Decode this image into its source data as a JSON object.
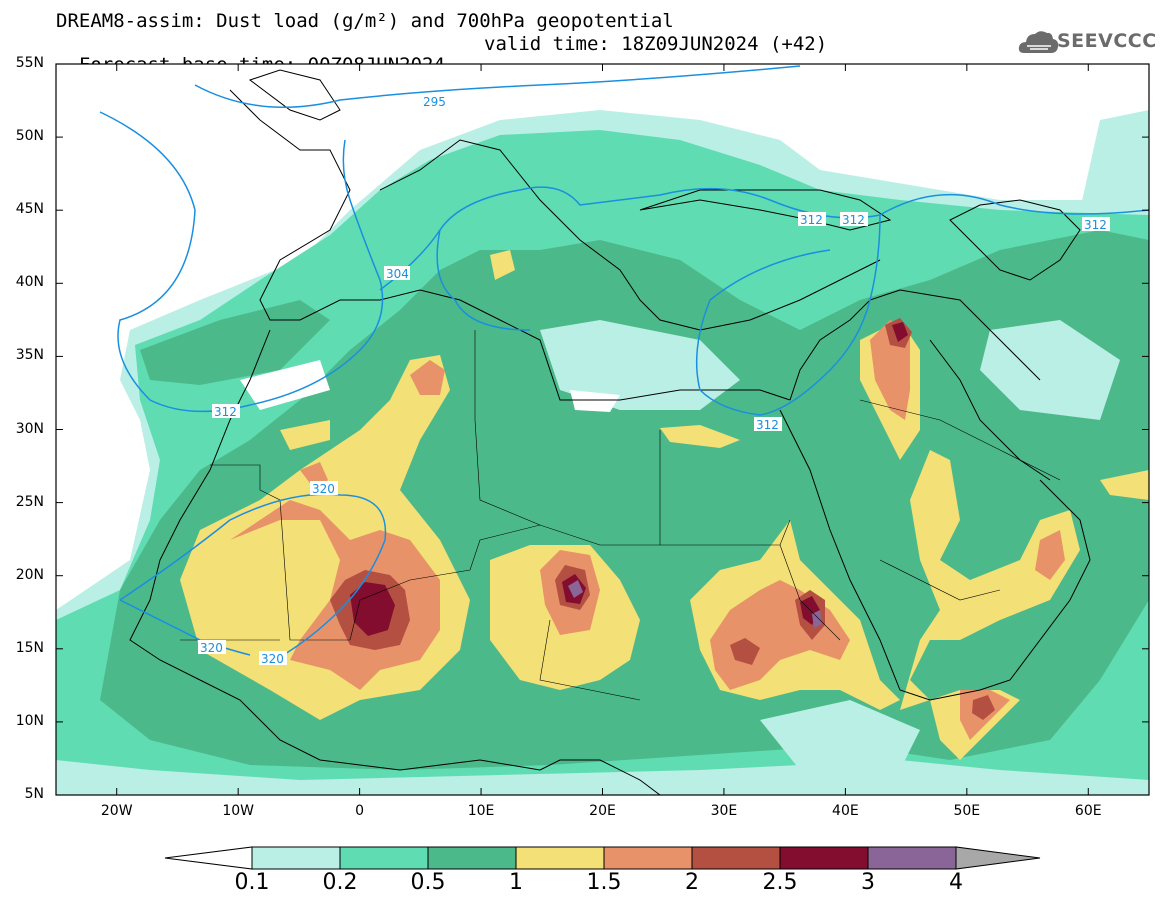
{
  "header": {
    "line1": "DREAM8-assim: Dust load (g/m²) and 700hPa geopotential",
    "line2_left": "Forecast base time: 00Z08JUN2024",
    "line2_right": "valid time: 18Z09JUN2024 (+42)"
  },
  "logo": {
    "text": "SEEVCCC",
    "icon": "cloud-icon",
    "color": "#6b6b6b"
  },
  "axes": {
    "lat_ticks": [
      "55N",
      "50N",
      "45N",
      "40N",
      "35N",
      "30N",
      "25N",
      "20N",
      "15N",
      "10N",
      "5N"
    ],
    "lat_values": [
      55,
      50,
      45,
      40,
      35,
      30,
      25,
      20,
      15,
      10,
      5
    ],
    "lon_ticks": [
      "20W",
      "10W",
      "0",
      "10E",
      "20E",
      "30E",
      "40E",
      "50E",
      "60E"
    ],
    "lon_values": [
      -20,
      -10,
      0,
      10,
      20,
      30,
      40,
      50,
      60
    ],
    "lon_range": [
      -25,
      65
    ],
    "lat_range": [
      5,
      55
    ]
  },
  "colorbar": {
    "labels": [
      "0.1",
      "0.2",
      "0.5",
      "1",
      "1.5",
      "2",
      "2.5",
      "3",
      "4"
    ],
    "colors": [
      "#b9efe4",
      "#5fdcb2",
      "#4cb98a",
      "#f3e076",
      "#e8926a",
      "#b45042",
      "#820d2e",
      "#8a6598"
    ],
    "under_color": "#ffffff",
    "over_color": "#a8a8a8"
  },
  "contours": {
    "color": "#1a8fe0",
    "labels": [
      "295",
      "304",
      "312",
      "312",
      "312",
      "312",
      "312",
      "320",
      "320",
      "320"
    ]
  }
}
